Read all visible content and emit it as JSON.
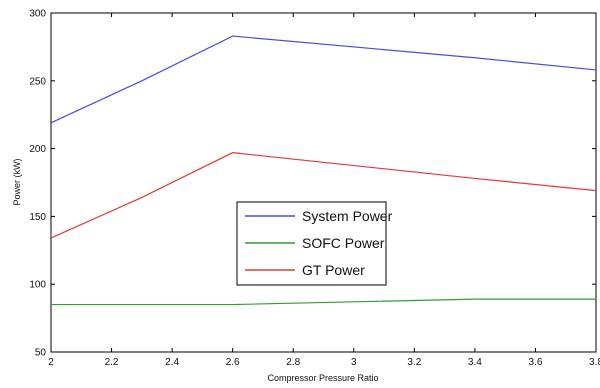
{
  "chart_data": {
    "type": "line",
    "title": "",
    "xlabel": "Compressor Pressure Ratio",
    "ylabel": "Power (kW)",
    "xlim": [
      2,
      3.8
    ],
    "ylim": [
      50,
      300
    ],
    "grid": false,
    "legend_position": "center",
    "x_ticks": [
      2,
      2.2,
      2.4,
      2.6,
      2.8,
      3,
      3.2,
      3.4,
      3.6,
      3.8
    ],
    "x_tick_labels": [
      "2",
      "2.2",
      "2.4",
      "2.6",
      "2.8",
      "3",
      "3.2",
      "3.4",
      "3.6",
      "3.8"
    ],
    "y_ticks": [
      50,
      100,
      150,
      200,
      250,
      300
    ],
    "y_tick_labels": [
      "50",
      "100",
      "150",
      "200",
      "250",
      "300"
    ],
    "x": [
      2,
      2.3,
      2.6,
      3.4,
      3.8
    ],
    "series": [
      {
        "name": "System Power",
        "color": "#4a4ae0",
        "values": [
          219,
          250,
          283,
          267,
          258
        ]
      },
      {
        "name": "SOFC Power",
        "color": "#2f9e2f",
        "values": [
          85,
          85,
          85,
          89,
          89
        ]
      },
      {
        "name": "GT Power",
        "color": "#e03a3a",
        "values": [
          134,
          164,
          197,
          178,
          169
        ]
      }
    ]
  }
}
